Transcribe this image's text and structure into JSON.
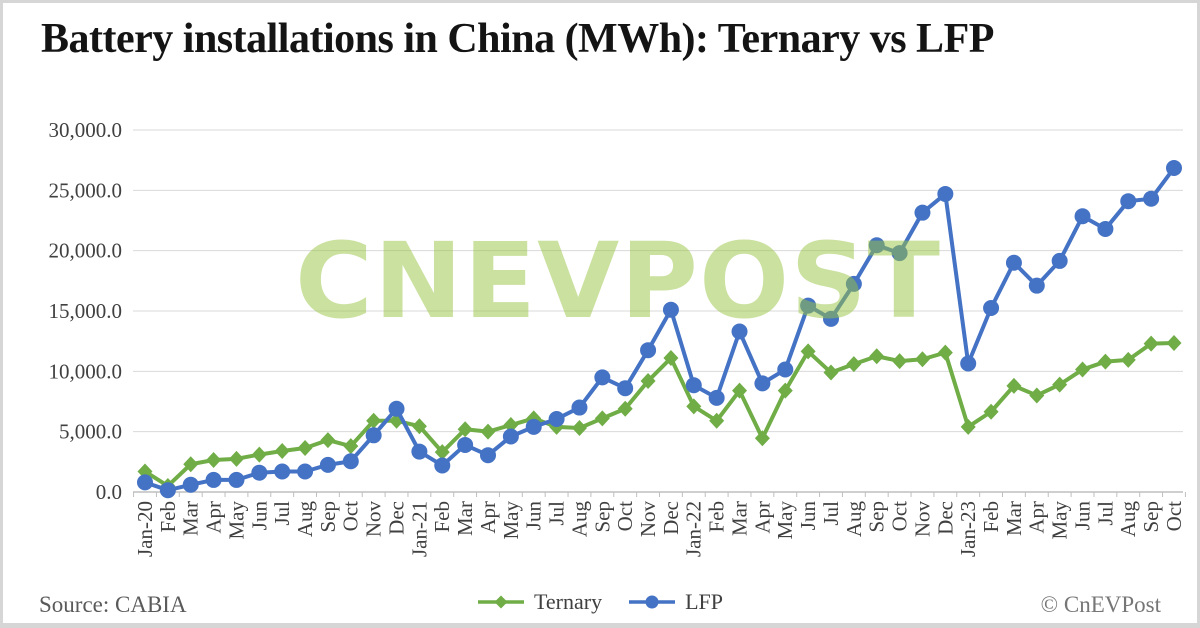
{
  "title": "Battery installations in China (MWh): Ternary vs LFP",
  "watermark": "CNEVPOST",
  "footer": {
    "source": "Source: CABIA",
    "copyright": "© CnEVPost"
  },
  "chart_data": {
    "type": "line",
    "title": "Battery installations in China (MWh): Ternary vs LFP",
    "xlabel": "",
    "ylabel": "",
    "ylim": [
      0,
      30000
    ],
    "ytick_step": 5000,
    "ytick_labels": [
      "0.0",
      "5,000.0",
      "10,000.0",
      "15,000.0",
      "20,000.0",
      "25,000.0",
      "30,000.0"
    ],
    "grid": true,
    "legend_position": "bottom",
    "categories": [
      "Jan-20",
      "Feb",
      "Mar",
      "Apr",
      "May",
      "Jun",
      "Jul",
      "Aug",
      "Sep",
      "Oct",
      "Nov",
      "Dec",
      "Jan-21",
      "Feb",
      "Mar",
      "Apr",
      "May",
      "Jun",
      "Jul",
      "Aug",
      "Sep",
      "Oct",
      "Nov",
      "Dec",
      "Jan-22",
      "Feb",
      "Mar",
      "Apr",
      "May",
      "Jun",
      "Jul",
      "Aug",
      "Sep",
      "Oct",
      "Nov",
      "Dec",
      "Jan-23",
      "Feb",
      "Mar",
      "Apr",
      "May",
      "Jun",
      "Jul",
      "Aug",
      "Sep",
      "Oct"
    ],
    "series": [
      {
        "name": "Ternary",
        "color": "#70AD47",
        "marker": "diamond",
        "values": [
          1700,
          500,
          2300,
          2650,
          2750,
          3100,
          3400,
          3650,
          4300,
          3800,
          5900,
          5900,
          5450,
          3300,
          5200,
          5000,
          5550,
          6100,
          5400,
          5300,
          6100,
          6900,
          9200,
          11100,
          7100,
          5900,
          8400,
          4450,
          8400,
          11650,
          9900,
          10600,
          11250,
          10850,
          11000,
          11550,
          5400,
          6650,
          8800,
          8000,
          8900,
          10150,
          10800,
          10950,
          12300,
          12350
        ]
      },
      {
        "name": "LFP",
        "color": "#4472C4",
        "marker": "circle",
        "values": [
          800,
          150,
          600,
          1000,
          1000,
          1600,
          1700,
          1700,
          2250,
          2550,
          4700,
          6900,
          3350,
          2200,
          3900,
          3050,
          4600,
          5400,
          6050,
          7000,
          9500,
          8600,
          11750,
          15100,
          8850,
          7800,
          13300,
          9000,
          10150,
          15450,
          14350,
          17250,
          20450,
          19800,
          23150,
          24700,
          10650,
          15250,
          19000,
          17100,
          19150,
          22850,
          21800,
          24100,
          24300,
          26850
        ]
      }
    ]
  }
}
